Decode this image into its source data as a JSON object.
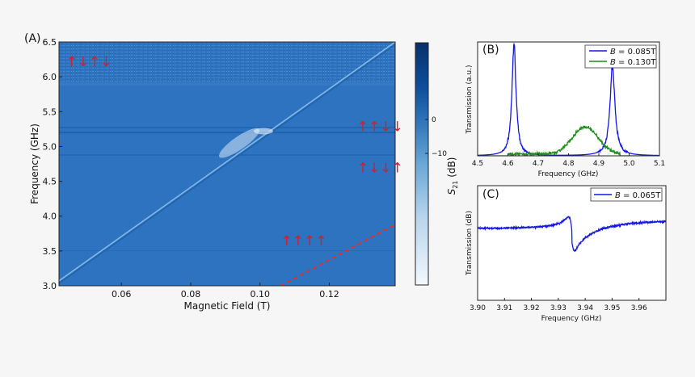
{
  "chart_data": [
    {
      "panel": "(A)",
      "type": "heatmap",
      "xlabel": "Magnetic Field (T)",
      "ylabel": "Frequency (GHz)",
      "xlim": [
        0.042,
        0.139
      ],
      "ylim": [
        3.0,
        6.5
      ],
      "xticks": [
        "0.06",
        "0.08",
        "0.10",
        "0.12"
      ],
      "xtick_values": [
        0.06,
        0.08,
        0.1,
        0.12
      ],
      "yticks": [
        "3.0",
        "3.5",
        "4.0",
        "4.5",
        "5.0",
        "5.5",
        "6.0",
        "6.5"
      ],
      "ytick_values": [
        3.0,
        3.5,
        4.0,
        4.5,
        5.0,
        5.5,
        6.0,
        6.5
      ],
      "colorbar": {
        "label": "S21 (dB)",
        "ticks": [
          "0",
          "−10"
        ],
        "range": [
          -15,
          3
        ]
      },
      "transition_line": {
        "x": [
          0.04,
          0.139
        ],
        "y": [
          3.0,
          6.5
        ]
      },
      "resonance_line": {
        "x": [
          0.042,
          0.139
        ],
        "y": [
          5.2,
          5.2
        ]
      },
      "dashed_line": {
        "color": "#e0302a",
        "x": [
          0.106,
          0.139
        ],
        "y": [
          3.0,
          3.88
        ]
      },
      "annotations": [
        {
          "text": "↑↓↑↓",
          "x": 0.044,
          "y": 6.15
        },
        {
          "text": "↑↑↓↓",
          "x": 0.128,
          "y": 5.22
        },
        {
          "text": "↑↓↓↑",
          "x": 0.128,
          "y": 4.63
        },
        {
          "text": "↑↑↑↑",
          "x": 0.106,
          "y": 3.58
        }
      ]
    },
    {
      "panel": "(B)",
      "type": "line",
      "xlabel": "Frequency (GHz)",
      "ylabel": "Transmission (a.u.)",
      "xlim": [
        4.5,
        5.1
      ],
      "ylim": [
        0,
        1.0
      ],
      "xticks": [
        "4.5",
        "4.6",
        "4.7",
        "4.8",
        "4.9",
        "5.0",
        "5.1"
      ],
      "xtick_values": [
        4.5,
        4.6,
        4.7,
        4.8,
        4.9,
        5.0,
        5.1
      ],
      "legend_position": "top-right",
      "series": [
        {
          "name": "B = 0.085T",
          "color": "#1515e6",
          "kind": "double-peak",
          "peaks": [
            4.62,
            4.945
          ],
          "peak_values": [
            1.0,
            0.78
          ]
        },
        {
          "name": "B = 0.130T",
          "color": "#1f8c1f",
          "kind": "broad-peak",
          "peaks": [
            4.855
          ],
          "peak_values": [
            0.24
          ]
        }
      ]
    },
    {
      "panel": "(C)",
      "type": "line",
      "xlabel": "Frequency (GHz)",
      "ylabel": "Transmission (dB)",
      "xlim": [
        3.9,
        3.97
      ],
      "ylim": [
        0,
        1.0
      ],
      "xticks": [
        "3.90",
        "3.91",
        "3.92",
        "3.93",
        "3.94",
        "3.95",
        "3.96"
      ],
      "xtick_values": [
        3.9,
        3.91,
        3.92,
        3.93,
        3.94,
        3.95,
        3.96
      ],
      "legend_position": "top-right",
      "series": [
        {
          "name": "B = 0.065T",
          "color": "#1515e6",
          "kind": "fano",
          "center": 3.935
        }
      ]
    }
  ],
  "labels": {
    "a_panel": "(A)",
    "b_panel": "(B)",
    "c_panel": "(C)",
    "a_xlabel": "Magnetic Field (T)",
    "a_ylabel": "Frequency (GHz)",
    "cb_label_sym": "S",
    "cb_label_sub": "21",
    "cb_label_unit": " (dB)",
    "cb_tick_0": "0",
    "cb_tick_1": "−10",
    "b_xlabel": "Frequency (GHz)",
    "b_ylabel": "Transmission (a.u.)",
    "b_leg_1_sym": "B",
    "b_leg_1_val": " = 0.085T",
    "b_leg_2_sym": "B",
    "b_leg_2_val": " = 0.130T",
    "c_xlabel": "Frequency (GHz)",
    "c_ylabel": "Transmission (dB)",
    "c_leg_1_sym": "B",
    "c_leg_1_val": " = 0.065T"
  }
}
